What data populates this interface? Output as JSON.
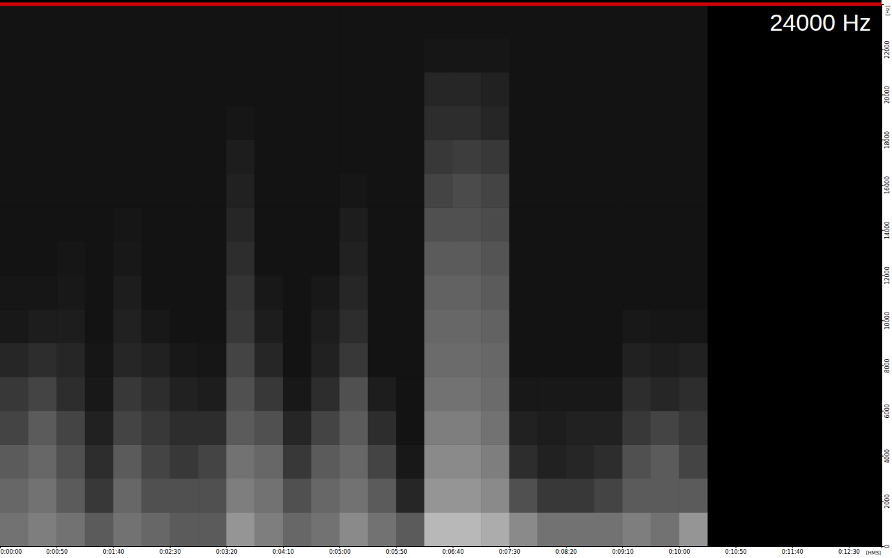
{
  "chart_data": {
    "type": "heatmap",
    "title": "24000 Hz",
    "x_label": "[HMS]",
    "y_label": "[Hz]",
    "xlim": [
      0,
      779
    ],
    "ylim": [
      0,
      24000
    ],
    "xticks": [
      {
        "value": 0,
        "label": "0:00:00"
      },
      {
        "value": 50,
        "label": "0:00:50"
      },
      {
        "value": 100,
        "label": "0:01:40"
      },
      {
        "value": 150,
        "label": "0:02:30"
      },
      {
        "value": 200,
        "label": "0:03:20"
      },
      {
        "value": 250,
        "label": "0:04:10"
      },
      {
        "value": 300,
        "label": "0:05:00"
      },
      {
        "value": 350,
        "label": "0:05:50"
      },
      {
        "value": 400,
        "label": "0:06:40"
      },
      {
        "value": 450,
        "label": "0:07:30"
      },
      {
        "value": 500,
        "label": "0:08:20"
      },
      {
        "value": 550,
        "label": "0:09:10"
      },
      {
        "value": 600,
        "label": "0:10:00"
      },
      {
        "value": 650,
        "label": "0:10:50"
      },
      {
        "value": 700,
        "label": "0:11:40"
      },
      {
        "value": 750,
        "label": "0:12:30"
      }
    ],
    "yticks": [
      0,
      2000,
      4000,
      6000,
      8000,
      10000,
      12000,
      14000,
      16000,
      18000,
      20000,
      22000
    ],
    "x_bins": [
      0,
      25,
      50,
      75,
      100,
      125,
      150,
      175,
      200,
      225,
      250,
      275,
      300,
      325,
      350,
      375,
      400,
      425,
      450,
      475,
      500,
      525,
      550,
      575,
      600,
      625
    ],
    "y_bins": [
      0,
      1500,
      3000,
      4500,
      6000,
      7500,
      9000,
      10500,
      12000,
      13500,
      15000,
      16500,
      18000,
      19500,
      21000,
      22500,
      24000
    ],
    "values": [
      [
        0.45,
        0.4,
        0.35,
        0.25,
        0.2,
        0.12,
        0.06,
        0.05,
        0.04,
        0.04,
        0.04,
        0.04,
        0.04,
        0.04,
        0.04,
        0.04
      ],
      [
        0.5,
        0.45,
        0.4,
        0.35,
        0.25,
        0.15,
        0.08,
        0.05,
        0.04,
        0.04,
        0.04,
        0.04,
        0.04,
        0.04,
        0.04,
        0.04
      ],
      [
        0.45,
        0.35,
        0.3,
        0.25,
        0.15,
        0.12,
        0.08,
        0.06,
        0.05,
        0.04,
        0.04,
        0.04,
        0.04,
        0.04,
        0.04,
        0.04
      ],
      [
        0.35,
        0.2,
        0.15,
        0.1,
        0.06,
        0.05,
        0.04,
        0.04,
        0.04,
        0.04,
        0.04,
        0.04,
        0.04,
        0.04,
        0.04,
        0.04
      ],
      [
        0.45,
        0.4,
        0.35,
        0.25,
        0.2,
        0.12,
        0.1,
        0.08,
        0.06,
        0.05,
        0.04,
        0.04,
        0.04,
        0.04,
        0.04,
        0.04
      ],
      [
        0.4,
        0.3,
        0.25,
        0.2,
        0.15,
        0.1,
        0.06,
        0.04,
        0.04,
        0.04,
        0.04,
        0.04,
        0.04,
        0.04,
        0.04,
        0.04
      ],
      [
        0.35,
        0.3,
        0.2,
        0.15,
        0.1,
        0.06,
        0.04,
        0.04,
        0.04,
        0.04,
        0.04,
        0.04,
        0.04,
        0.04,
        0.04,
        0.04
      ],
      [
        0.35,
        0.3,
        0.25,
        0.15,
        0.08,
        0.05,
        0.04,
        0.04,
        0.04,
        0.04,
        0.04,
        0.04,
        0.04,
        0.04,
        0.04,
        0.04
      ],
      [
        0.6,
        0.5,
        0.45,
        0.35,
        0.3,
        0.25,
        0.2,
        0.18,
        0.15,
        0.12,
        0.1,
        0.08,
        0.05,
        0.04,
        0.04,
        0.04
      ],
      [
        0.5,
        0.45,
        0.4,
        0.3,
        0.2,
        0.12,
        0.08,
        0.06,
        0.04,
        0.04,
        0.04,
        0.04,
        0.04,
        0.04,
        0.04,
        0.04
      ],
      [
        0.4,
        0.3,
        0.2,
        0.12,
        0.06,
        0.04,
        0.04,
        0.04,
        0.04,
        0.04,
        0.04,
        0.04,
        0.04,
        0.04,
        0.04,
        0.04
      ],
      [
        0.45,
        0.4,
        0.35,
        0.25,
        0.15,
        0.1,
        0.08,
        0.06,
        0.04,
        0.04,
        0.04,
        0.04,
        0.04,
        0.04,
        0.04,
        0.04
      ],
      [
        0.55,
        0.45,
        0.4,
        0.35,
        0.3,
        0.2,
        0.15,
        0.12,
        0.1,
        0.08,
        0.05,
        0.04,
        0.04,
        0.04,
        0.04,
        0.04
      ],
      [
        0.45,
        0.35,
        0.25,
        0.15,
        0.08,
        0.04,
        0.04,
        0.04,
        0.04,
        0.04,
        0.04,
        0.04,
        0.04,
        0.04,
        0.04,
        0.04
      ],
      [
        0.35,
        0.12,
        0.06,
        0.04,
        0.04,
        0.04,
        0.04,
        0.04,
        0.04,
        0.04,
        0.04,
        0.04,
        0.04,
        0.04,
        0.04,
        0.04
      ],
      [
        0.75,
        0.6,
        0.55,
        0.5,
        0.45,
        0.42,
        0.4,
        0.38,
        0.35,
        0.3,
        0.25,
        0.2,
        0.15,
        0.12,
        0.05,
        0.04
      ],
      [
        0.75,
        0.6,
        0.55,
        0.5,
        0.45,
        0.42,
        0.4,
        0.38,
        0.35,
        0.3,
        0.28,
        0.22,
        0.15,
        0.12,
        0.05,
        0.04
      ],
      [
        0.7,
        0.55,
        0.5,
        0.45,
        0.42,
        0.4,
        0.38,
        0.35,
        0.32,
        0.28,
        0.25,
        0.2,
        0.12,
        0.1,
        0.05,
        0.04
      ],
      [
        0.55,
        0.3,
        0.15,
        0.1,
        0.06,
        0.04,
        0.04,
        0.04,
        0.04,
        0.04,
        0.04,
        0.04,
        0.04,
        0.04,
        0.04,
        0.04
      ],
      [
        0.45,
        0.2,
        0.1,
        0.08,
        0.06,
        0.04,
        0.04,
        0.04,
        0.04,
        0.04,
        0.04,
        0.04,
        0.04,
        0.04,
        0.04,
        0.04
      ],
      [
        0.45,
        0.2,
        0.12,
        0.1,
        0.06,
        0.04,
        0.04,
        0.04,
        0.04,
        0.04,
        0.04,
        0.04,
        0.04,
        0.04,
        0.04,
        0.04
      ],
      [
        0.45,
        0.25,
        0.15,
        0.1,
        0.06,
        0.04,
        0.04,
        0.04,
        0.04,
        0.04,
        0.04,
        0.04,
        0.04,
        0.04,
        0.04,
        0.04
      ],
      [
        0.5,
        0.35,
        0.3,
        0.2,
        0.15,
        0.1,
        0.06,
        0.04,
        0.04,
        0.04,
        0.04,
        0.04,
        0.04,
        0.04,
        0.04,
        0.04
      ],
      [
        0.45,
        0.35,
        0.35,
        0.25,
        0.12,
        0.08,
        0.05,
        0.04,
        0.04,
        0.04,
        0.04,
        0.04,
        0.04,
        0.04,
        0.04,
        0.04
      ],
      [
        0.6,
        0.35,
        0.25,
        0.2,
        0.15,
        0.1,
        0.05,
        0.04,
        0.04,
        0.04,
        0.04,
        0.04,
        0.04,
        0.04,
        0.04,
        0.04
      ]
    ]
  }
}
